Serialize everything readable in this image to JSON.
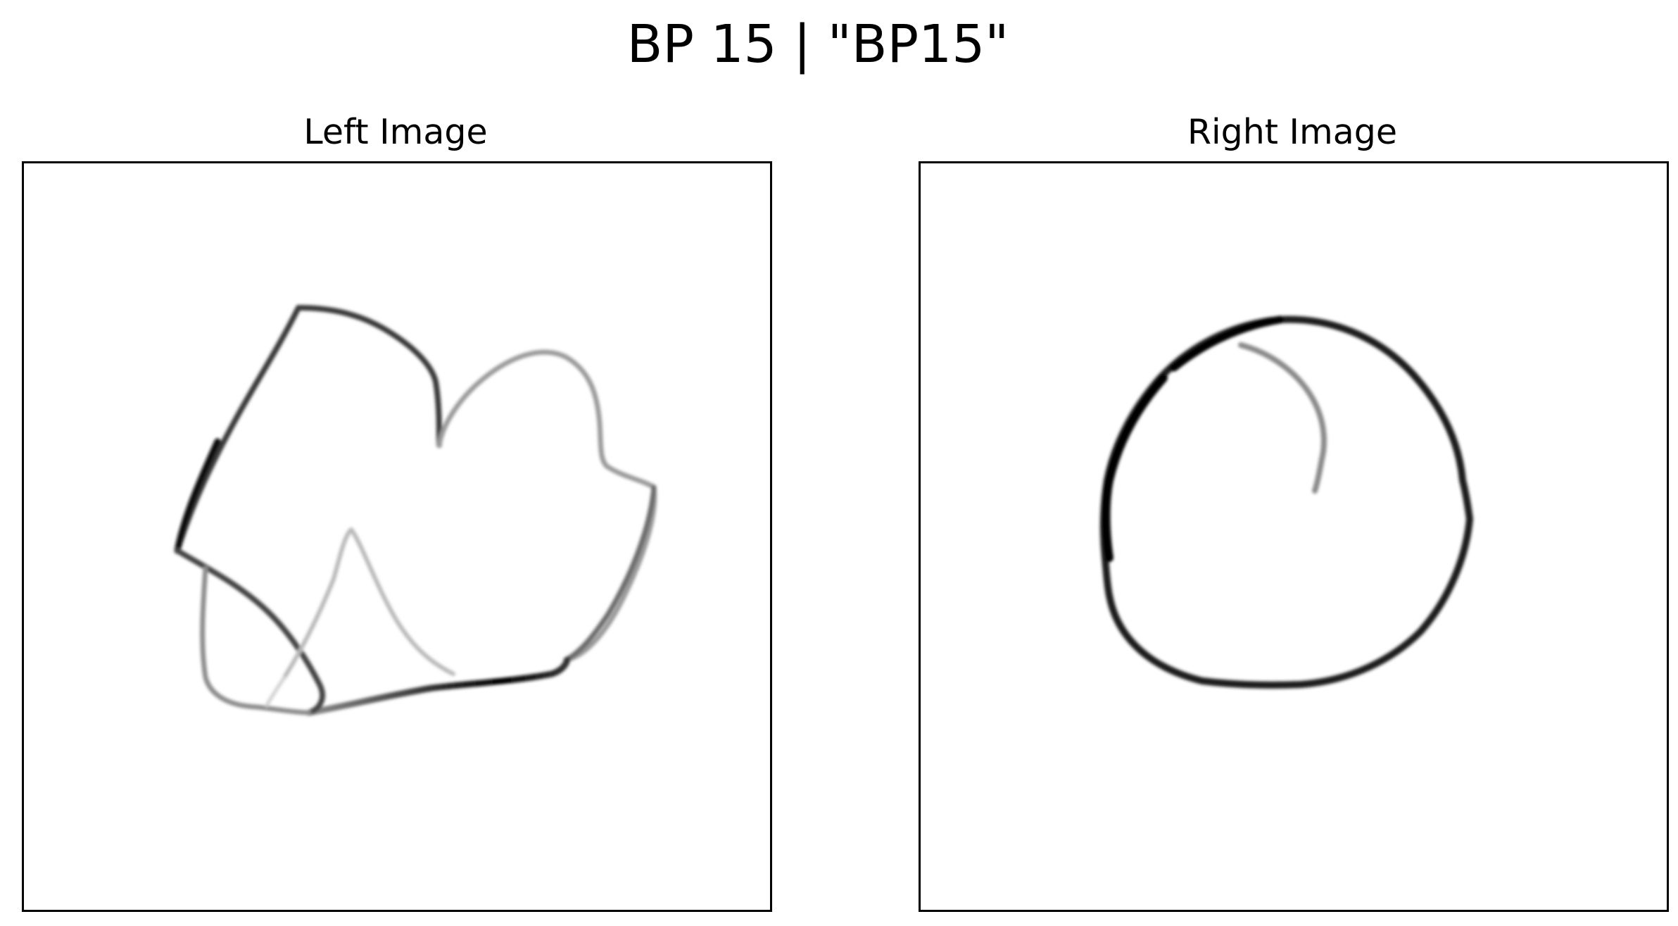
{
  "figure": {
    "title": "BP 15 | \"BP15\""
  },
  "panels": {
    "left": {
      "title": "Left Image"
    },
    "right": {
      "title": "Right Image"
    }
  },
  "colors": {
    "ink": "#000000",
    "background": "#ffffff",
    "bottom_band": "#9a9a9a"
  }
}
